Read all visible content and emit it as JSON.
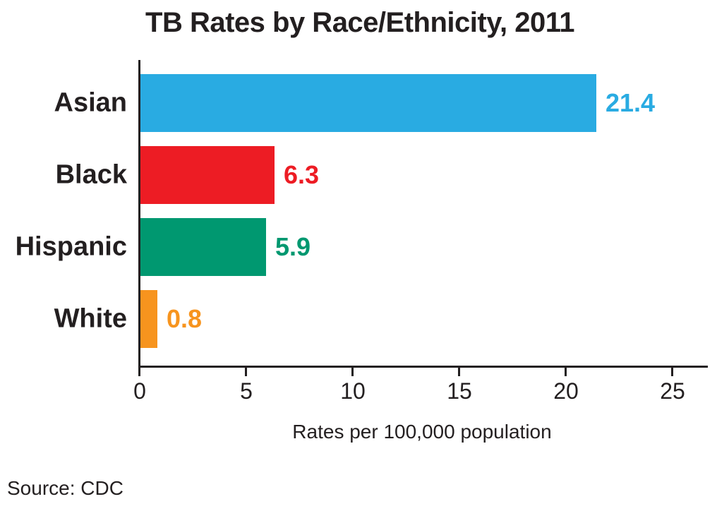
{
  "title": "TB Rates by Race/Ethnicity, 2011",
  "source_note": "Source: CDC",
  "colors": {
    "text": "#231f20",
    "axis": "#231f20",
    "asian_bar": "#29abe2",
    "black_bar": "#ed1c24",
    "hispanic_bar": "#009870",
    "white_bar": "#f7941e"
  },
  "chart_data": {
    "type": "bar",
    "orientation": "horizontal",
    "title": "TB Rates by Race/Ethnicity, 2011",
    "categories": [
      "Asian",
      "Black",
      "Hispanic",
      "White"
    ],
    "values": [
      21.4,
      6.3,
      5.9,
      0.8
    ],
    "value_labels": [
      "21.4",
      "6.3",
      "5.9",
      "0.8"
    ],
    "bar_colors": [
      "#29abe2",
      "#ed1c24",
      "#009870",
      "#f7941e"
    ],
    "xlabel": "Rates per 100,000 population",
    "ylabel": "",
    "xlim": [
      0,
      25
    ],
    "xticks": [
      0,
      5,
      10,
      15,
      20,
      25
    ],
    "xtick_labels": [
      "0",
      "5",
      "10",
      "15",
      "20",
      "25"
    ],
    "grid": false,
    "legend_position": "none",
    "annotations": [
      "Source: CDC"
    ]
  }
}
